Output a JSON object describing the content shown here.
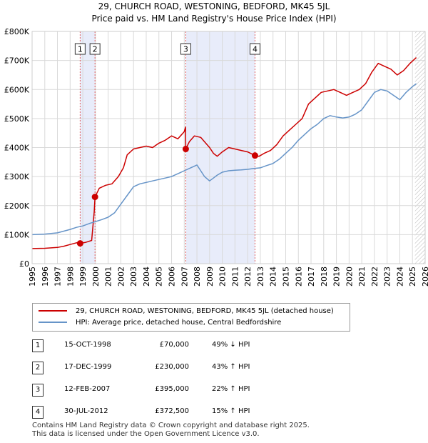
{
  "title_line1": "29, CHURCH ROAD, WESTONING, BEDFORD, MK45 5JL",
  "title_line2": "Price paid vs. HM Land Registry's House Price Index (HPI)",
  "chart_data": {
    "type": "line",
    "title": "29, CHURCH ROAD, WESTONING, BEDFORD, MK45 5JL — Price paid vs. HM Land Registry's House Price Index (HPI)",
    "xlabel": "",
    "ylabel": "",
    "xlim": [
      1995,
      2026
    ],
    "ylim": [
      0,
      800000
    ],
    "x_ticks": [
      1995,
      1996,
      1997,
      1998,
      1999,
      2000,
      2001,
      2002,
      2003,
      2004,
      2005,
      2006,
      2007,
      2008,
      2009,
      2010,
      2011,
      2012,
      2013,
      2014,
      2015,
      2016,
      2017,
      2018,
      2019,
      2020,
      2021,
      2022,
      2023,
      2024,
      2025,
      2026
    ],
    "y_ticks": [
      0,
      100000,
      200000,
      300000,
      400000,
      500000,
      600000,
      700000,
      800000
    ],
    "y_tick_labels": [
      "£0",
      "£100K",
      "£200K",
      "£300K",
      "£400K",
      "£500K",
      "£600K",
      "£700K",
      "£800K"
    ],
    "grid": true,
    "shaded_regions": [
      {
        "from": 1998.79,
        "to": 1999.96
      },
      {
        "from": 2007.12,
        "to": 2012.58
      }
    ],
    "hatched_region": {
      "from": 2025.2,
      "to": 2026
    },
    "series": [
      {
        "name": "29, CHURCH ROAD, WESTONING, BEDFORD, MK45 5JL (detached house)",
        "color": "#cc0000",
        "x": [
          1995,
          1996,
          1997,
          1997.5,
          1998,
          1998.5,
          1998.79,
          1999.2,
          1999.7,
          1999.9,
          1999.96,
          2000.3,
          2000.8,
          2001.3,
          2001.8,
          2002.2,
          2002.5,
          2003.0,
          2003.5,
          2004.0,
          2004.5,
          2005.0,
          2005.5,
          2006.0,
          2006.5,
          2007.0,
          2007.1,
          2007.12,
          2007.4,
          2007.8,
          2008.3,
          2008.6,
          2009.0,
          2009.3,
          2009.6,
          2010.0,
          2010.5,
          2011.0,
          2011.5,
          2012.0,
          2012.58,
          2012.9,
          2013.3,
          2013.8,
          2014.3,
          2014.8,
          2015.3,
          2015.8,
          2016.3,
          2016.8,
          2017.3,
          2017.8,
          2018.3,
          2018.8,
          2019.3,
          2019.8,
          2020.3,
          2020.8,
          2021.3,
          2021.8,
          2022.3,
          2022.8,
          2023.3,
          2023.8,
          2024.3,
          2024.8,
          2025.3
        ],
        "values": [
          52000,
          53000,
          56000,
          60000,
          66000,
          72000,
          70000,
          73000,
          80000,
          180000,
          230000,
          260000,
          270000,
          275000,
          300000,
          330000,
          375000,
          395000,
          400000,
          405000,
          400000,
          415000,
          425000,
          440000,
          430000,
          455000,
          470000,
          395000,
          420000,
          440000,
          435000,
          420000,
          400000,
          380000,
          370000,
          385000,
          400000,
          395000,
          390000,
          385000,
          372500,
          370000,
          380000,
          390000,
          410000,
          440000,
          460000,
          480000,
          500000,
          550000,
          570000,
          590000,
          595000,
          600000,
          590000,
          580000,
          590000,
          600000,
          620000,
          660000,
          690000,
          680000,
          670000,
          650000,
          665000,
          690000,
          710000
        ]
      },
      {
        "name": "HPI: Average price, detached house, Central Bedfordshire",
        "color": "#6694c8",
        "x": [
          1995,
          1996,
          1997,
          1997.5,
          1998,
          1998.5,
          1999,
          1999.5,
          2000,
          2000.5,
          2001,
          2001.5,
          2002,
          2002.5,
          2003,
          2003.5,
          2004,
          2004.5,
          2005,
          2005.5,
          2006,
          2006.5,
          2007,
          2007.5,
          2008,
          2008.3,
          2008.6,
          2009,
          2009.3,
          2009.6,
          2010,
          2010.5,
          2011,
          2011.5,
          2012,
          2012.5,
          2013,
          2013.5,
          2014,
          2014.5,
          2015,
          2015.5,
          2016,
          2016.5,
          2017,
          2017.5,
          2018,
          2018.5,
          2019,
          2019.5,
          2020,
          2020.5,
          2021,
          2021.5,
          2022,
          2022.5,
          2023,
          2023.5,
          2024,
          2024.5,
          2025,
          2025.3
        ],
        "values": [
          100000,
          102000,
          106000,
          112000,
          118000,
          125000,
          130000,
          138000,
          145000,
          152000,
          160000,
          175000,
          205000,
          235000,
          265000,
          275000,
          280000,
          285000,
          290000,
          295000,
          300000,
          310000,
          320000,
          330000,
          340000,
          320000,
          300000,
          285000,
          295000,
          305000,
          315000,
          320000,
          322000,
          323000,
          325000,
          328000,
          330000,
          338000,
          345000,
          360000,
          380000,
          400000,
          425000,
          445000,
          465000,
          480000,
          500000,
          510000,
          505000,
          502000,
          505000,
          515000,
          530000,
          560000,
          590000,
          600000,
          595000,
          580000,
          565000,
          590000,
          610000,
          620000
        ]
      }
    ],
    "sale_points": [
      {
        "label": "1",
        "x": 1998.79,
        "value": 70000
      },
      {
        "label": "2",
        "x": 1999.96,
        "value": 230000
      },
      {
        "label": "3",
        "x": 2007.12,
        "value": 395000
      },
      {
        "label": "4",
        "x": 2012.58,
        "value": 372500
      }
    ]
  },
  "legend": {
    "red_label": "29, CHURCH ROAD, WESTONING, BEDFORD, MK45 5JL (detached house)",
    "blue_label": "HPI: Average price, detached house, Central Bedfordshire",
    "red_color": "#cc0000",
    "blue_color": "#6694c8"
  },
  "transactions": [
    {
      "num": "1",
      "date": "15-OCT-1998",
      "price": "£70,000",
      "hpi": "49% ↓ HPI"
    },
    {
      "num": "2",
      "date": "17-DEC-1999",
      "price": "£230,000",
      "hpi": "43% ↑ HPI"
    },
    {
      "num": "3",
      "date": "12-FEB-2007",
      "price": "£395,000",
      "hpi": "22% ↑ HPI"
    },
    {
      "num": "4",
      "date": "30-JUL-2012",
      "price": "£372,500",
      "hpi": "15% ↑ HPI"
    }
  ],
  "footer_line1": "Contains HM Land Registry data © Crown copyright and database right 2025.",
  "footer_line2": "This data is licensed under the Open Government Licence v3.0."
}
